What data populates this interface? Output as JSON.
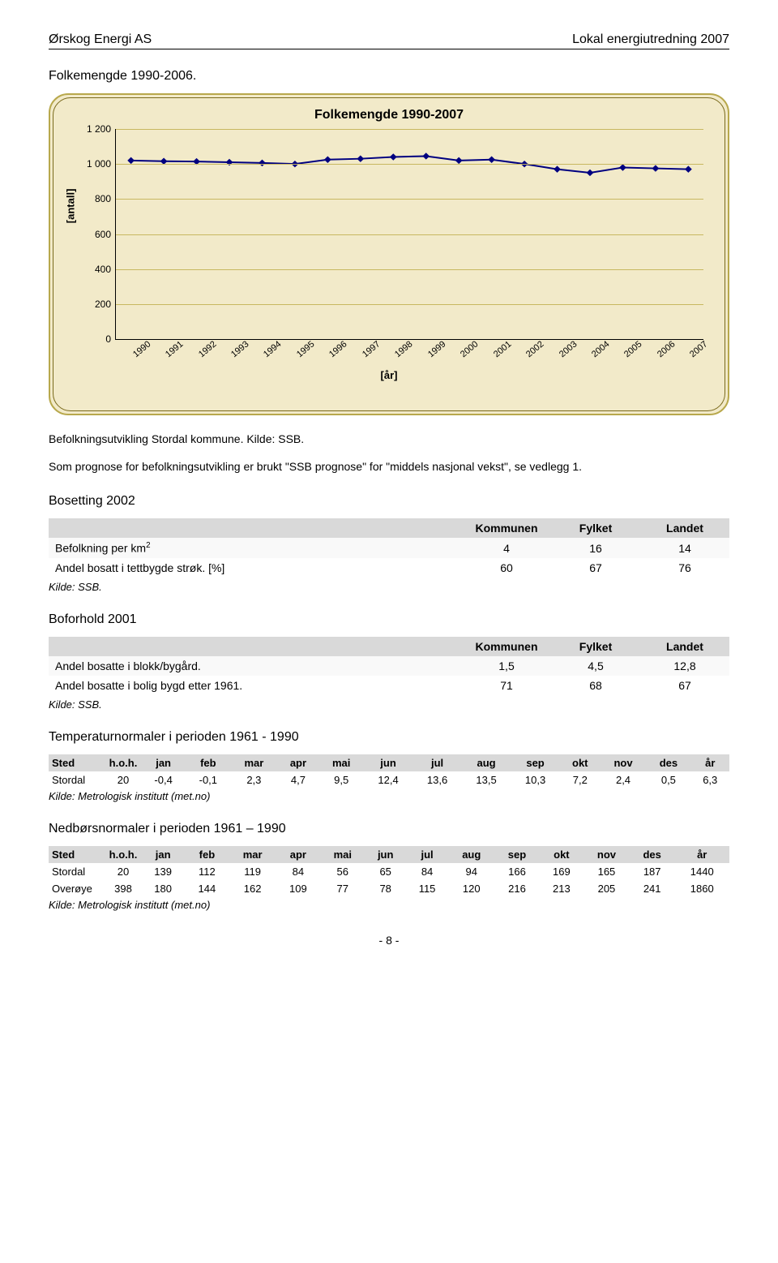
{
  "header": {
    "left": "Ørskog Energi AS",
    "right": "Lokal energiutredning 2007"
  },
  "section1": {
    "title": "Folkemengde 1990-2006."
  },
  "chart": {
    "title": "Folkemengde 1990-2007",
    "ylabel_text": "[antall]",
    "xlabel_text": "[år]",
    "years": [
      "1990",
      "1991",
      "1992",
      "1993",
      "1994",
      "1995",
      "1996",
      "1997",
      "1998",
      "1999",
      "2000",
      "2001",
      "2002",
      "2003",
      "2004",
      "2005",
      "2006",
      "2007"
    ],
    "values": [
      1020,
      1016,
      1014,
      1010,
      1006,
      1000,
      1025,
      1030,
      1040,
      1045,
      1020,
      1025,
      1000,
      970,
      950,
      980,
      975,
      970
    ],
    "ylim": [
      0,
      1200
    ],
    "ytick_step": 200,
    "yticks_formatted": [
      "0",
      "200",
      "400",
      "600",
      "800",
      "1 000",
      "1 200"
    ],
    "line_color": "#000080",
    "marker_fill": "#000080",
    "marker_size": 6,
    "line_width": 2,
    "background_color": "#f2eac9",
    "grid_color": "#c8b860",
    "border_color": "#b8a84c"
  },
  "caption1": "Befolkningsutvikling Stordal kommune. Kilde: SSB.",
  "prognose_text": "Som prognose for befolkningsutvikling er brukt \"SSB prognose\" for \"middels nasjonal vekst\", se vedlegg 1.",
  "bosetting": {
    "title": "Bosetting 2002",
    "headers": [
      "",
      "Kommunen",
      "Fylket",
      "Landet"
    ],
    "row1_label_html": "Befolkning per km<sup>2</sup>",
    "row1": [
      "4",
      "16",
      "14"
    ],
    "row2_label": "Andel bosatt i tettbygde strøk. [%]",
    "row2": [
      "60",
      "67",
      "76"
    ],
    "source": "Kilde: SSB."
  },
  "boforhold": {
    "title": "Boforhold 2001",
    "headers": [
      "",
      "Kommunen",
      "Fylket",
      "Landet"
    ],
    "row1_label": "Andel bosatte i blokk/bygård.",
    "row1": [
      "1,5",
      "4,5",
      "12,8"
    ],
    "row2_label": "Andel bosatte i bolig bygd etter 1961.",
    "row2": [
      "71",
      "68",
      "67"
    ],
    "source": "Kilde: SSB."
  },
  "temp": {
    "title": "Temperaturnormaler i perioden 1961 - 1990",
    "headers": [
      "Sted",
      "h.o.h.",
      "jan",
      "feb",
      "mar",
      "apr",
      "mai",
      "jun",
      "jul",
      "aug",
      "sep",
      "okt",
      "nov",
      "des",
      "år"
    ],
    "row": [
      "Stordal",
      "20",
      "-0,4",
      "-0,1",
      "2,3",
      "4,7",
      "9,5",
      "12,4",
      "13,6",
      "13,5",
      "10,3",
      "7,2",
      "2,4",
      "0,5",
      "6,3"
    ],
    "source": "Kilde: Metrologisk institutt (met.no)"
  },
  "nedbor": {
    "title": "Nedbørsnormaler i perioden 1961 – 1990",
    "headers": [
      "Sted",
      "h.o.h.",
      "jan",
      "feb",
      "mar",
      "apr",
      "mai",
      "jun",
      "jul",
      "aug",
      "sep",
      "okt",
      "nov",
      "des",
      "år"
    ],
    "rows": [
      [
        "Stordal",
        "20",
        "139",
        "112",
        "119",
        "84",
        "56",
        "65",
        "84",
        "94",
        "166",
        "169",
        "165",
        "187",
        "1440"
      ],
      [
        "Overøye",
        "398",
        "180",
        "144",
        "162",
        "109",
        "77",
        "78",
        "115",
        "120",
        "216",
        "213",
        "205",
        "241",
        "1860"
      ]
    ],
    "source": "Kilde: Metrologisk institutt (met.no)"
  },
  "page_num": "- 8 -"
}
